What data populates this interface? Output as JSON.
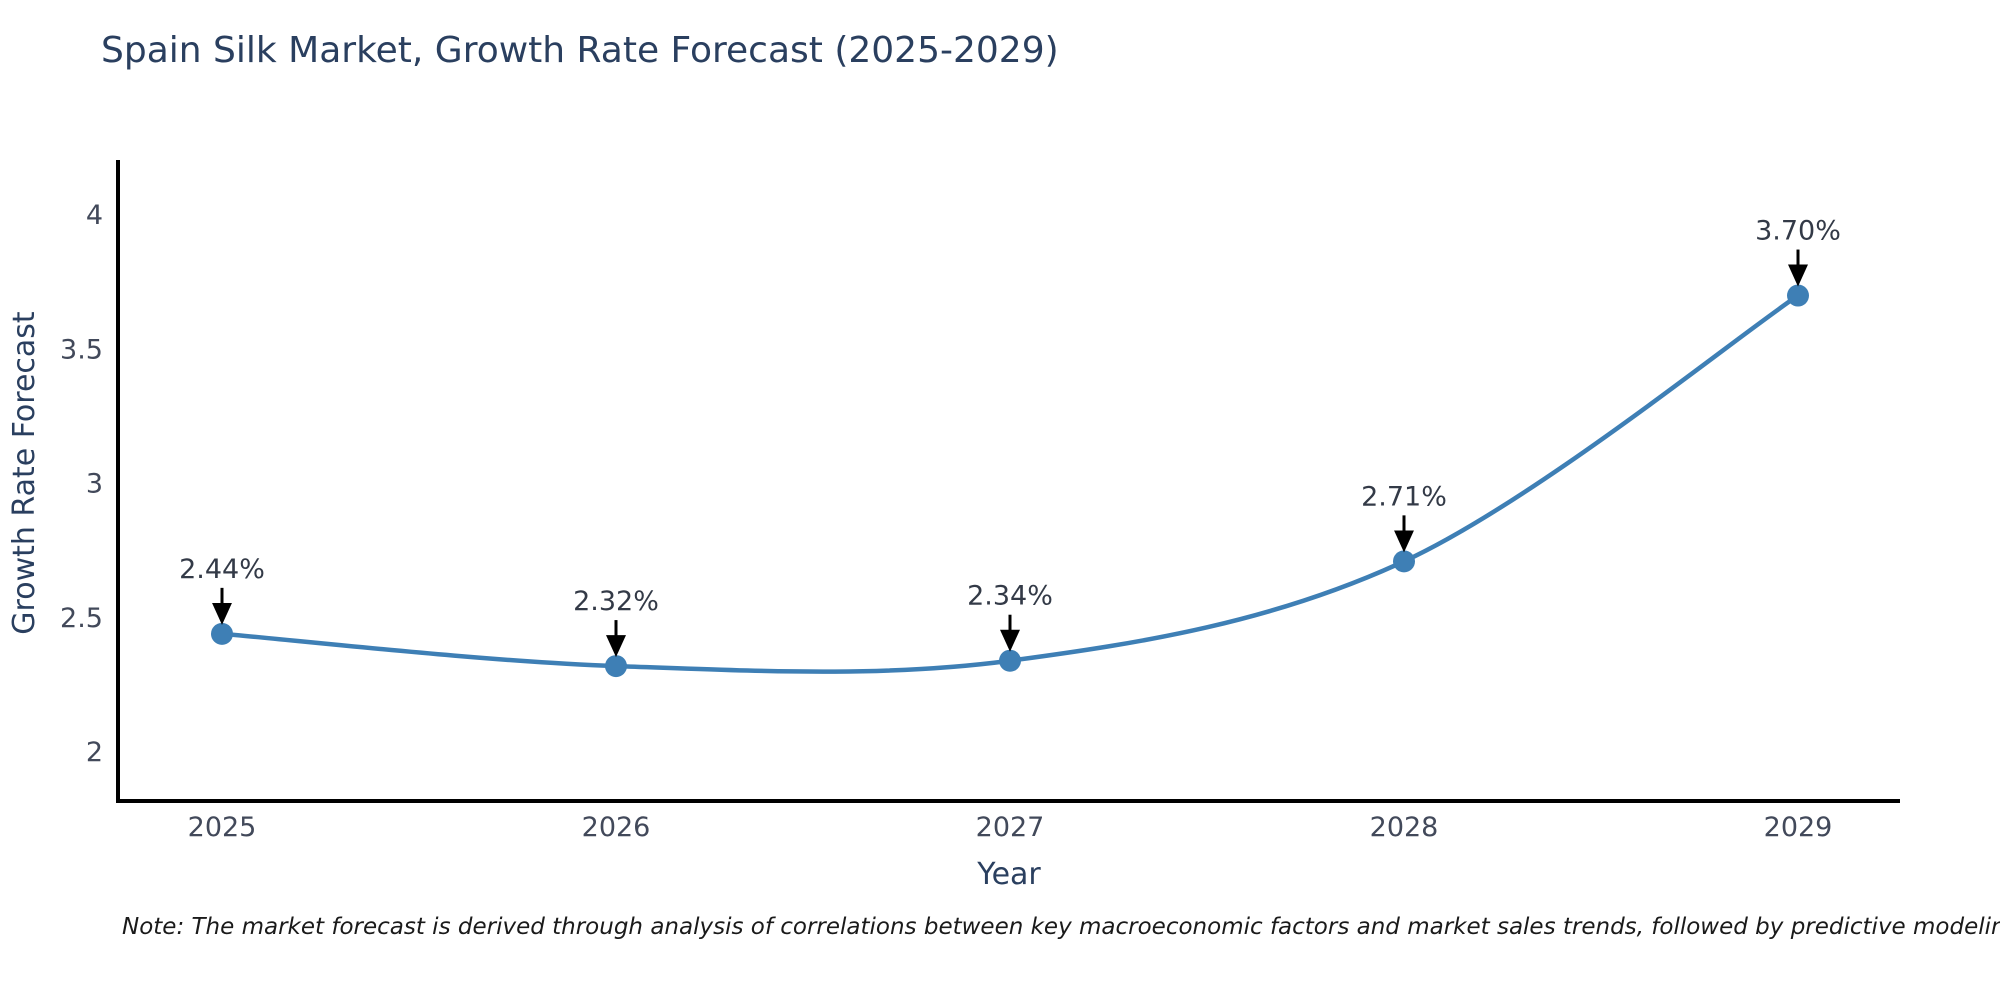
{
  "title": "Spain Silk Market, Growth Rate Forecast (2025-2029)",
  "chart_data": {
    "type": "line",
    "title": "Spain Silk Market, Growth Rate Forecast (2025-2029)",
    "categories": [
      "2025",
      "2026",
      "2027",
      "2028",
      "2029"
    ],
    "series": [
      {
        "name": "Growth Rate Forecast",
        "values": [
          2.44,
          2.32,
          2.34,
          2.71,
          3.7
        ]
      }
    ],
    "point_labels": [
      "2.44%",
      "2.32%",
      "2.34%",
      "2.71%",
      "3.70%"
    ],
    "xlabel": "Year",
    "ylabel": "Growth Rate Forecast",
    "yticks": [
      2,
      2.5,
      3,
      3.5,
      4
    ],
    "ytick_labels": [
      "2",
      "2.5",
      "3",
      "3.5",
      "4"
    ],
    "ylim": [
      1.82,
      4.21
    ],
    "grid": false,
    "legend": false,
    "line_shape": "spline",
    "line_color": "#3e7fb5",
    "marker_color": "#3e7fb5",
    "arrow_color": "#000000",
    "axis_color": "#000000"
  },
  "note": "Note: The market forecast is derived through analysis of correlations between key macroeconomic factors and market sales trends, followed by predictive modeling to project future sales"
}
